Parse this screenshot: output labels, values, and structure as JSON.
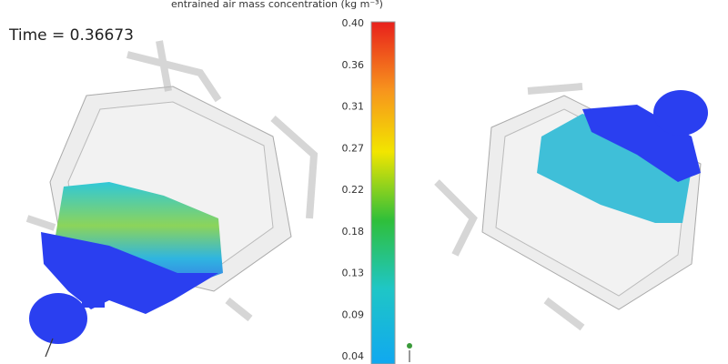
{
  "colorbar": {
    "title": "entrained air mass concentration (kg m⁻³)",
    "tick_labels": [
      "0.40",
      "0.36",
      "0.31",
      "0.27",
      "0.22",
      "0.18",
      "0.13",
      "0.09",
      "0.04"
    ]
  },
  "time_label": "Time = 0.36673"
}
